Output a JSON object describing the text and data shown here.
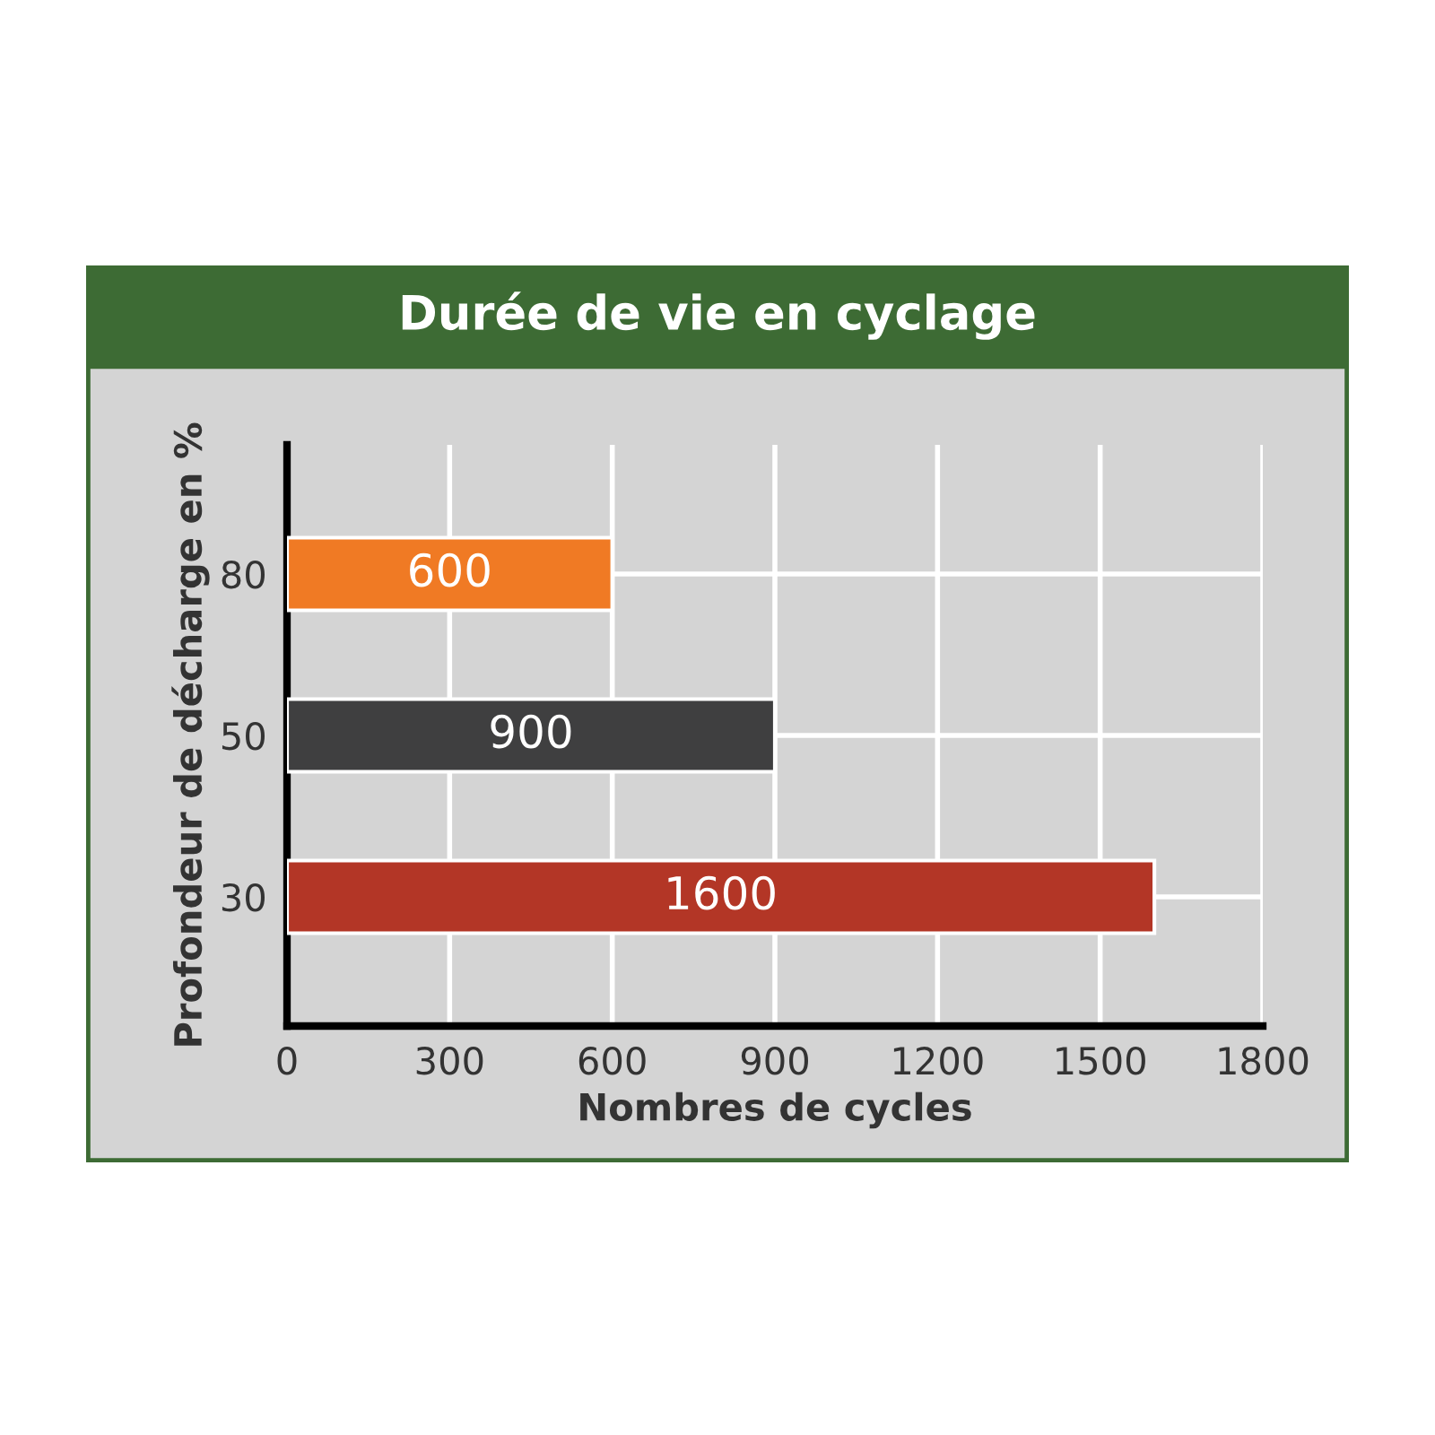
{
  "chart_data": {
    "type": "bar",
    "orientation": "horizontal",
    "title": "Durée de vie en cyclage",
    "xlabel": "Nombres de cycles",
    "ylabel": "Profondeur de décharge en %",
    "categories": [
      "80",
      "50",
      "30"
    ],
    "values": [
      600,
      900,
      1600
    ],
    "colors": [
      "#f07a24",
      "#3f3f40",
      "#b33626"
    ],
    "xlim": [
      0,
      1800
    ],
    "xticks": [
      0,
      300,
      600,
      900,
      1200,
      1500,
      1800
    ],
    "grid": true,
    "data_labels": true
  }
}
